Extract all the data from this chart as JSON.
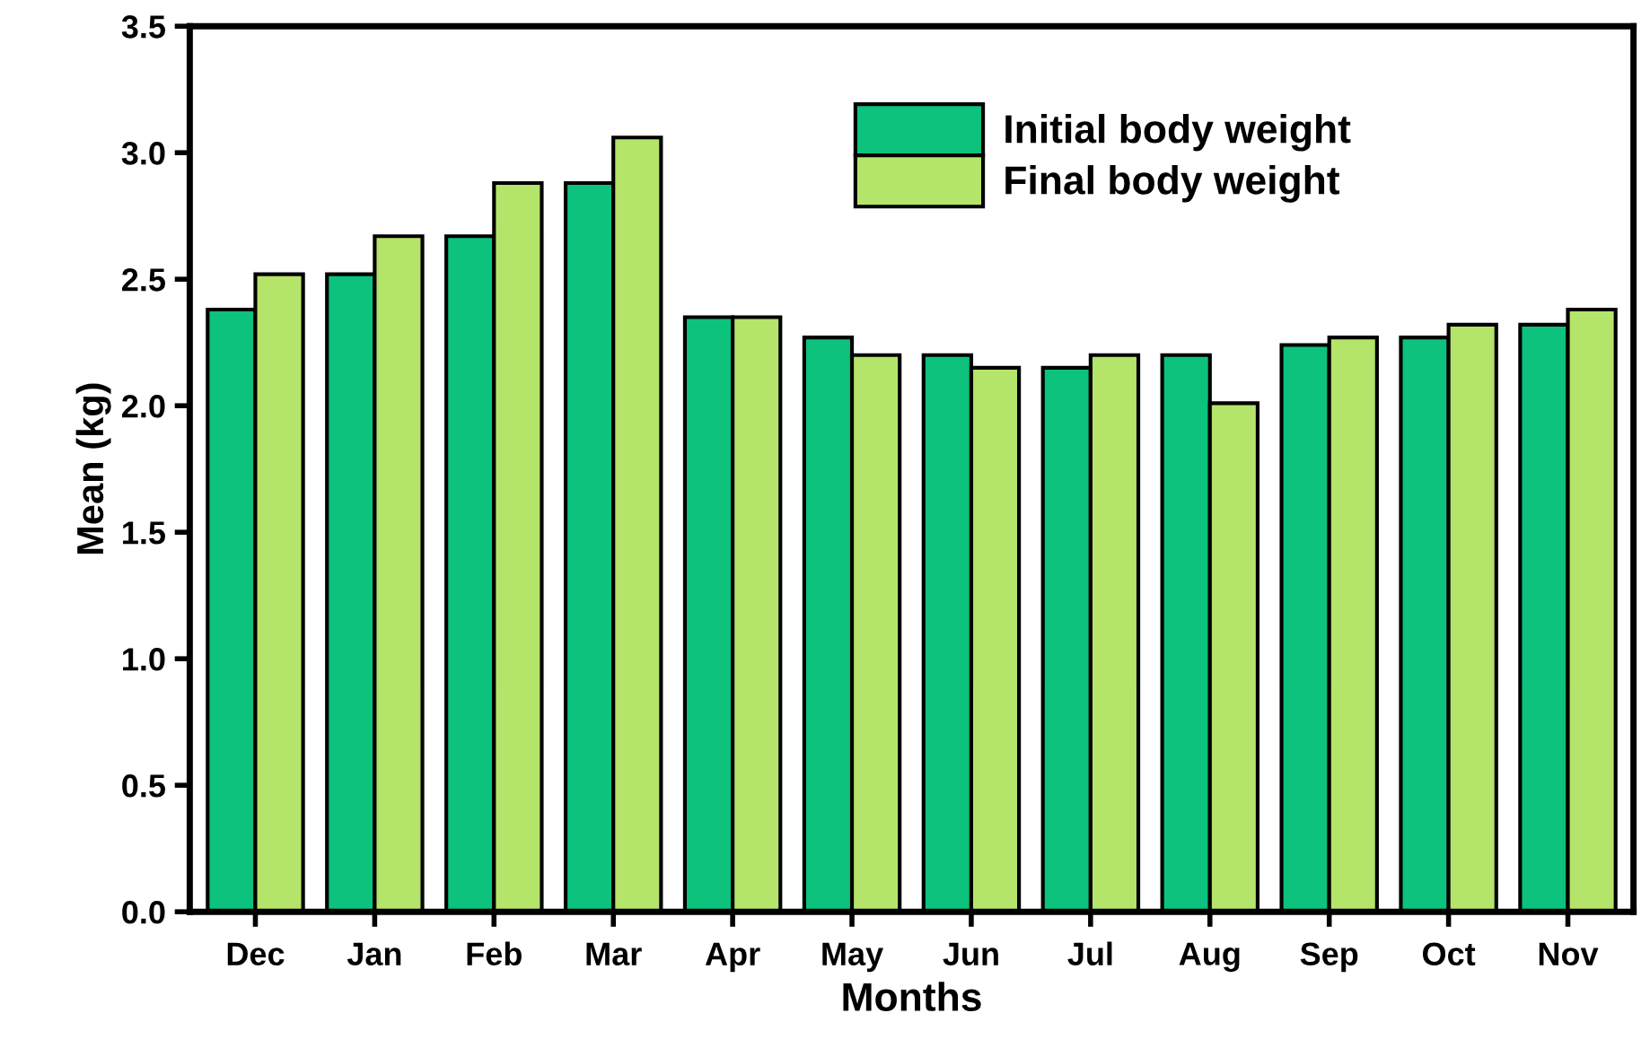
{
  "chart_data": {
    "type": "bar",
    "xlabel": "Months",
    "ylabel": "Mean (kg)",
    "categories": [
      "Dec",
      "Jan",
      "Feb",
      "Mar",
      "Apr",
      "May",
      "Jun",
      "Jul",
      "Aug",
      "Sep",
      "Oct",
      "Nov"
    ],
    "series": [
      {
        "name": "Initial body weight",
        "color": "#0cc27c",
        "values": [
          2.38,
          2.52,
          2.67,
          2.88,
          2.35,
          2.27,
          2.2,
          2.15,
          2.2,
          2.24,
          2.27,
          2.32
        ]
      },
      {
        "name": "Final body weight",
        "color": "#b4e46a",
        "values": [
          2.52,
          2.67,
          2.88,
          3.06,
          2.35,
          2.2,
          2.15,
          2.2,
          2.01,
          2.27,
          2.32,
          2.38
        ]
      }
    ],
    "ylim": [
      0,
      3.5
    ],
    "yticks": [
      {
        "value": 0,
        "label": "0.0"
      },
      {
        "value": 0.5,
        "label": "0.5"
      },
      {
        "value": 1,
        "label": "1.0"
      },
      {
        "value": 1.5,
        "label": "1.5"
      },
      {
        "value": 2,
        "label": "2.0"
      },
      {
        "value": 2.5,
        "label": "2.5"
      },
      {
        "value": 3,
        "label": "3.0"
      },
      {
        "value": 3.5,
        "label": "3.5"
      }
    ],
    "grid": false,
    "legend": "top right"
  }
}
